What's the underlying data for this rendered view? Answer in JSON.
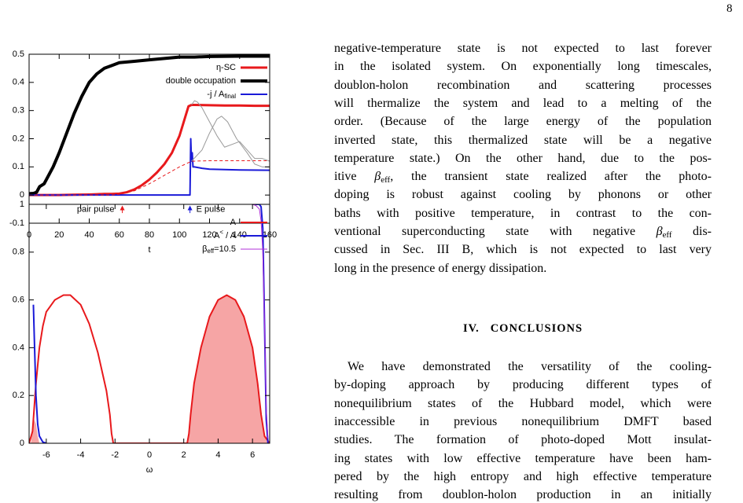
{
  "page_number": "8",
  "chart_data": [
    {
      "type": "line",
      "xlabel": "t",
      "xlim": [
        0,
        160
      ],
      "xticks": [
        0,
        20,
        40,
        60,
        80,
        100,
        120,
        140,
        160
      ],
      "ylim": [
        -0.1,
        0.5
      ],
      "yticks": [
        -0.1,
        0,
        0.1,
        0.2,
        0.3,
        0.4,
        0.5
      ],
      "grid": false,
      "legend": "top-right",
      "series": [
        {
          "name": [
            "η-SC"
          ],
          "name_style": [
            "normal"
          ],
          "color": "#e8191c",
          "width": 3,
          "x": [
            0,
            20,
            30,
            40,
            45,
            50,
            55,
            60,
            65,
            70,
            75,
            80,
            85,
            90,
            95,
            100,
            104,
            106,
            108,
            110,
            120,
            130,
            140,
            150,
            160
          ],
          "values": [
            0,
            0,
            0.001,
            0.002,
            0.003,
            0.004,
            0.004,
            0.005,
            0.01,
            0.02,
            0.035,
            0.055,
            0.08,
            0.11,
            0.15,
            0.21,
            0.28,
            0.315,
            0.32,
            0.32,
            0.319,
            0.318,
            0.318,
            0.317,
            0.317
          ]
        },
        {
          "name": [
            "double occupation"
          ],
          "name_style": [
            "normal"
          ],
          "color": "#000000",
          "width": 4,
          "x": [
            0,
            3,
            5,
            7,
            10,
            13,
            16,
            20,
            25,
            30,
            35,
            40,
            45,
            50,
            55,
            60,
            70,
            80,
            90,
            100,
            110,
            120,
            140,
            160
          ],
          "values": [
            0.005,
            0.006,
            0.01,
            0.03,
            0.04,
            0.07,
            0.1,
            0.15,
            0.22,
            0.29,
            0.35,
            0.4,
            0.43,
            0.45,
            0.46,
            0.47,
            0.475,
            0.48,
            0.485,
            0.49,
            0.49,
            0.492,
            0.493,
            0.493
          ]
        },
        {
          "name": [
            "-j / A",
            "final"
          ],
          "name_style": [
            "normal",
            "sub"
          ],
          "color": "#1a1ad8",
          "width": 2,
          "x": [
            0,
            106,
            107,
            107.5,
            108,
            108.5,
            109,
            110,
            115,
            120,
            140,
            160
          ],
          "values": [
            0,
            0,
            0,
            0.2,
            0.12,
            0.15,
            0.1,
            0.1,
            0.095,
            0.092,
            0.089,
            0.088
          ]
        },
        {
          "color": "#e8191c",
          "width": 1,
          "dash": true,
          "x": [
            0,
            55,
            60,
            70,
            80,
            90,
            100,
            108,
            120,
            140,
            160
          ],
          "values": [
            0,
            0,
            0.003,
            0.015,
            0.04,
            0.07,
            0.1,
            0.12,
            0.122,
            0.122,
            0.122
          ]
        },
        {
          "color": "#999999",
          "width": 1,
          "x": [
            108,
            110,
            112,
            115,
            118,
            120,
            125,
            130,
            135,
            140,
            145,
            150,
            155,
            160
          ],
          "values": [
            0.32,
            0.335,
            0.33,
            0.31,
            0.28,
            0.26,
            0.21,
            0.17,
            0.18,
            0.19,
            0.16,
            0.13,
            0.13,
            0.12
          ]
        },
        {
          "color": "#999999",
          "width": 1,
          "x": [
            108,
            115,
            120,
            125,
            128,
            132,
            138,
            145,
            150,
            155,
            160
          ],
          "values": [
            0.12,
            0.16,
            0.22,
            0.27,
            0.28,
            0.26,
            0.2,
            0.15,
            0.11,
            0.1,
            0.1
          ]
        }
      ],
      "annotations": [
        {
          "text": "pair pulse",
          "x": 62,
          "color": "#e8191c",
          "text_side": "left"
        },
        {
          "text": "E pulse",
          "x": 107,
          "color": "#1a1ad8",
          "text_side": "right"
        }
      ]
    },
    {
      "type": "line",
      "xlabel": "ω",
      "xlim": [
        -7,
        7
      ],
      "xticks": [
        -6,
        -4,
        -2,
        0,
        2,
        4,
        6
      ],
      "ylim": [
        0,
        1
      ],
      "yticks": [
        0,
        0.2,
        0.4,
        0.6,
        0.8,
        1
      ],
      "grid": false,
      "legend": "top-right",
      "series": [
        {
          "style": "area",
          "color": "#f6a5a5",
          "x": [
            -6.9,
            -6.8,
            -6.7,
            -6.6,
            -6.5,
            -6.4,
            0,
            2.2,
            2.3,
            2.4,
            2.6,
            3,
            3.5,
            4,
            4.5,
            5,
            5.5,
            6,
            6.3,
            6.5,
            6.7,
            6.9
          ],
          "values": [
            0,
            0.05,
            0.1,
            0.08,
            0.03,
            0,
            null,
            0,
            0.04,
            0.12,
            0.25,
            0.4,
            0.53,
            0.6,
            0.62,
            0.6,
            0.53,
            0.4,
            0.25,
            0.12,
            0.03,
            0
          ]
        },
        {
          "name": [
            "A"
          ],
          "name_style": [
            "normal"
          ],
          "color": "#e8191c",
          "width": 2,
          "x": [
            -7,
            -6.8,
            -6.6,
            -6.4,
            -6.2,
            -6,
            -5.5,
            -5,
            -4.6,
            -4,
            -3.5,
            -3,
            -2.5,
            -2.3,
            -2.2,
            -2.1,
            0,
            2.2,
            2.3,
            2.4,
            2.6,
            3,
            3.5,
            4,
            4.5,
            5,
            5.5,
            6,
            6.3,
            6.5,
            6.7,
            7
          ],
          "values": [
            0,
            0.05,
            0.25,
            0.4,
            0.49,
            0.55,
            0.6,
            0.62,
            0.62,
            0.58,
            0.5,
            0.38,
            0.22,
            0.12,
            0.04,
            0,
            0,
            0,
            0.04,
            0.12,
            0.25,
            0.4,
            0.53,
            0.6,
            0.62,
            0.6,
            0.53,
            0.4,
            0.25,
            0.12,
            0.03,
            0
          ]
        },
        {
          "name": [
            "A",
            "<",
            " / A"
          ],
          "name_style": [
            "normal",
            "sup",
            "normal"
          ],
          "color": "#1a1ad8",
          "width": 2,
          "x": [
            -6.75,
            -6.7,
            -6.6,
            -6.5,
            -6.4,
            -6.2,
            -6,
            0,
            6,
            6.2,
            6.4,
            6.5,
            6.6,
            6.7,
            6.8,
            6.9
          ],
          "values": [
            0.58,
            0.45,
            0.2,
            0.08,
            0.03,
            0.005,
            0,
            null,
            1,
            1,
            1,
            0.99,
            0.9,
            0.5,
            0.1,
            0
          ]
        },
        {
          "name": [
            "β",
            "eff",
            "=10.5"
          ],
          "name_style": [
            "normal",
            "sub",
            "normal"
          ],
          "color": "#b030d8",
          "width": 1,
          "x": [
            5.8,
            6,
            6.2,
            6.4,
            6.5,
            6.6,
            6.7,
            6.8,
            6.9
          ],
          "values": [
            1,
            1,
            0.995,
            0.98,
            0.93,
            0.8,
            0.5,
            0.15,
            0.02
          ]
        }
      ]
    }
  ],
  "body": {
    "paragraph1": [
      [
        {
          "text": "negative-temperature state is not expected to last forever"
        }
      ],
      [
        {
          "text": "in the isolated system. On exponentially long timescales,"
        }
      ],
      [
        {
          "text": "doublon-holon recombination and scattering processes"
        }
      ],
      [
        {
          "text": "will thermalize the system and lead to a melting of the"
        }
      ],
      [
        {
          "text": "order. (Because of the large energy of the population"
        }
      ],
      [
        {
          "text": "inverted state, this thermalized state will be a negative"
        }
      ],
      [
        {
          "text": "temperature state.) On the other hand, due to the pos-"
        }
      ],
      [
        {
          "text": "itive "
        },
        {
          "text": "β"
        },
        {
          "text": "eff",
          "style": "sub"
        },
        {
          "text": ", the transient state realized after the photo-"
        }
      ],
      [
        {
          "text": "doping is robust against cooling by phonons or other"
        }
      ],
      [
        {
          "text": "baths with positive temperature, in contrast to the con-"
        }
      ],
      [
        {
          "text": "ventional superconducting state with negative "
        },
        {
          "text": "β"
        },
        {
          "text": "eff",
          "style": "sub"
        },
        {
          "text": " dis-"
        }
      ],
      [
        {
          "text": "cussed in Sec. III B, which is not expected to last very"
        }
      ],
      [
        {
          "text": "long in the presence of energy dissipation."
        }
      ]
    ],
    "section_number": "IV.",
    "section_title": "CONCLUSIONS",
    "paragraph2": [
      [
        {
          "text": "We have demonstrated the versatility of the cooling-"
        }
      ],
      [
        {
          "text": "by-doping approach by producing different types of"
        }
      ],
      [
        {
          "text": "nonequilibrium states of the Hubbard model, which were"
        }
      ],
      [
        {
          "text": "inaccessible in previous nonequilibrium DMFT based"
        }
      ],
      [
        {
          "text": "studies. The formation of photo-doped Mott insulat-"
        }
      ],
      [
        {
          "text": "ing states with low effective temperature have been ham-"
        }
      ],
      [
        {
          "text": "pered by the high entropy and high effective temperature"
        }
      ],
      [
        {
          "text": "resulting from doublon-holon production in an initially"
        }
      ]
    ]
  }
}
